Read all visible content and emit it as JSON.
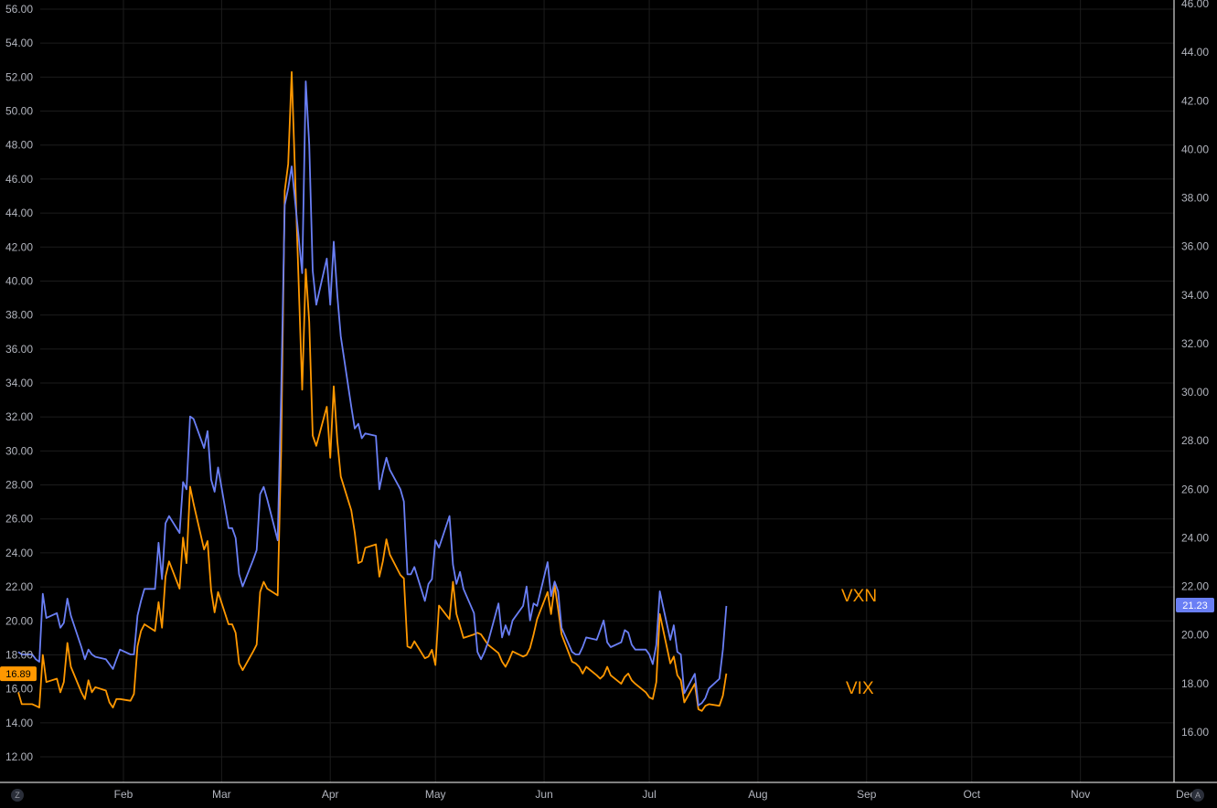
{
  "chart_data": {
    "type": "line",
    "background": "#000000",
    "grid": true,
    "colors": {
      "grid": "#1c1c1c",
      "axis_text": "#b2b5be",
      "axis_line": "#ffffff",
      "vix": "#ff9800",
      "vxn": "#6a7ff5"
    },
    "x_ticks": [
      {
        "label": "Feb",
        "day": 32
      },
      {
        "label": "Mar",
        "day": 60
      },
      {
        "label": "Apr",
        "day": 91
      },
      {
        "label": "May",
        "day": 121
      },
      {
        "label": "Jun",
        "day": 152
      },
      {
        "label": "Jul",
        "day": 182
      },
      {
        "label": "Aug",
        "day": 213
      },
      {
        "label": "Sep",
        "day": 244
      },
      {
        "label": "Oct",
        "day": 274
      },
      {
        "label": "Nov",
        "day": 305
      },
      {
        "label": "Dec",
        "day": 335
      }
    ],
    "xlim": [
      2,
      339
    ],
    "left_axis": {
      "ylim": [
        10.6,
        56.4
      ],
      "ticks": [
        "12.00",
        "14.00",
        "16.00",
        "18.00",
        "20.00",
        "22.00",
        "24.00",
        "26.00",
        "28.00",
        "30.00",
        "32.00",
        "34.00",
        "36.00",
        "38.00",
        "40.00",
        "42.00",
        "44.00",
        "46.00",
        "48.00",
        "50.00",
        "52.00",
        "54.00",
        "56.00"
      ]
    },
    "right_axis": {
      "ylim": [
        14.0,
        46.2
      ],
      "ticks": [
        "16.00",
        "18.00",
        "20.00",
        "22.00",
        "24.00",
        "26.00",
        "28.00",
        "30.00",
        "32.00",
        "34.00",
        "36.00",
        "38.00",
        "40.00",
        "42.00",
        "44.00",
        "46.00"
      ]
    },
    "series": [
      {
        "name": "VIX",
        "axis": "left",
        "color": "#ff9800",
        "last_value": "16.89",
        "points": [
          [
            2,
            15.8
          ],
          [
            3,
            15.1
          ],
          [
            6,
            15.1
          ],
          [
            7,
            15.0
          ],
          [
            8,
            14.9
          ],
          [
            9,
            18.0
          ],
          [
            10,
            16.4
          ],
          [
            13,
            16.6
          ],
          [
            14,
            15.8
          ],
          [
            15,
            16.4
          ],
          [
            16,
            18.7
          ],
          [
            17,
            17.3
          ],
          [
            20,
            15.8
          ],
          [
            21,
            15.4
          ],
          [
            22,
            16.5
          ],
          [
            23,
            15.8
          ],
          [
            24,
            16.1
          ],
          [
            27,
            15.9
          ],
          [
            28,
            15.2
          ],
          [
            29,
            14.9
          ],
          [
            30,
            15.4
          ],
          [
            31,
            15.4
          ],
          [
            34,
            15.3
          ],
          [
            35,
            15.7
          ],
          [
            36,
            18.5
          ],
          [
            37,
            19.4
          ],
          [
            38,
            19.8
          ],
          [
            41,
            19.4
          ],
          [
            42,
            21.1
          ],
          [
            43,
            19.6
          ],
          [
            44,
            22.6
          ],
          [
            45,
            23.5
          ],
          [
            48,
            21.9
          ],
          [
            49,
            24.9
          ],
          [
            50,
            23.4
          ],
          [
            51,
            27.9
          ],
          [
            52,
            26.9
          ],
          [
            55,
            24.2
          ],
          [
            56,
            24.7
          ],
          [
            57,
            21.8
          ],
          [
            58,
            20.5
          ],
          [
            59,
            21.7
          ],
          [
            62,
            19.8
          ],
          [
            63,
            19.8
          ],
          [
            64,
            19.3
          ],
          [
            65,
            17.5
          ],
          [
            66,
            17.1
          ],
          [
            69,
            18.2
          ],
          [
            70,
            18.6
          ],
          [
            71,
            21.7
          ],
          [
            72,
            22.3
          ],
          [
            73,
            21.9
          ],
          [
            76,
            21.5
          ],
          [
            77,
            30.0
          ],
          [
            78,
            45.3
          ],
          [
            79,
            46.9
          ],
          [
            80,
            52.3
          ],
          [
            83,
            33.6
          ],
          [
            84,
            40.7
          ],
          [
            85,
            37.6
          ],
          [
            86,
            30.9
          ],
          [
            87,
            30.3
          ],
          [
            90,
            32.6
          ],
          [
            91,
            29.6
          ],
          [
            92,
            33.8
          ],
          [
            93,
            30.6
          ],
          [
            94,
            28.5
          ],
          [
            97,
            26.5
          ],
          [
            98,
            25.2
          ],
          [
            99,
            23.4
          ],
          [
            100,
            23.5
          ],
          [
            101,
            24.3
          ],
          [
            104,
            24.5
          ],
          [
            105,
            22.6
          ],
          [
            106,
            23.5
          ],
          [
            107,
            24.8
          ],
          [
            108,
            23.9
          ],
          [
            111,
            22.7
          ],
          [
            112,
            22.5
          ],
          [
            113,
            18.5
          ],
          [
            114,
            18.4
          ],
          [
            115,
            18.8
          ],
          [
            118,
            17.8
          ],
          [
            119,
            17.9
          ],
          [
            120,
            18.3
          ],
          [
            121,
            17.4
          ],
          [
            122,
            20.9
          ],
          [
            125,
            20.1
          ],
          [
            126,
            22.3
          ],
          [
            127,
            20.4
          ],
          [
            128,
            19.7
          ],
          [
            129,
            19.0
          ],
          [
            132,
            19.2
          ],
          [
            133,
            19.3
          ],
          [
            134,
            19.2
          ],
          [
            135,
            18.9
          ],
          [
            136,
            18.6
          ],
          [
            139,
            18.1
          ],
          [
            140,
            17.6
          ],
          [
            141,
            17.3
          ],
          [
            142,
            17.7
          ],
          [
            143,
            18.2
          ],
          [
            146,
            17.9
          ],
          [
            147,
            18.0
          ],
          [
            148,
            18.4
          ],
          [
            149,
            19.2
          ],
          [
            150,
            20.1
          ],
          [
            153,
            21.7
          ],
          [
            154,
            20.4
          ],
          [
            155,
            22.1
          ],
          [
            156,
            20.7
          ],
          [
            157,
            19.2
          ],
          [
            160,
            17.6
          ],
          [
            161,
            17.5
          ],
          [
            162,
            17.3
          ],
          [
            163,
            16.9
          ],
          [
            164,
            17.3
          ],
          [
            167,
            16.8
          ],
          [
            168,
            16.6
          ],
          [
            169,
            16.8
          ],
          [
            170,
            17.3
          ],
          [
            171,
            16.8
          ],
          [
            174,
            16.3
          ],
          [
            175,
            16.7
          ],
          [
            176,
            16.9
          ],
          [
            177,
            16.5
          ],
          [
            178,
            16.3
          ],
          [
            181,
            15.8
          ],
          [
            182,
            15.5
          ],
          [
            183,
            15.4
          ],
          [
            184,
            16.4
          ],
          [
            185,
            20.4
          ],
          [
            188,
            17.5
          ],
          [
            189,
            17.9
          ],
          [
            190,
            16.8
          ],
          [
            191,
            16.5
          ],
          [
            192,
            15.2
          ],
          [
            195,
            16.3
          ],
          [
            196,
            14.8
          ],
          [
            197,
            14.7
          ],
          [
            198,
            15.0
          ],
          [
            199,
            15.1
          ],
          [
            202,
            15.0
          ],
          [
            203,
            15.6
          ],
          [
            204,
            16.9
          ]
        ]
      },
      {
        "name": "VXN",
        "axis": "right",
        "color": "#6a7ff5",
        "last_value": "21.23",
        "points": [
          [
            2,
            19.3
          ],
          [
            3,
            19.2
          ],
          [
            6,
            19.2
          ],
          [
            7,
            19.0
          ],
          [
            8,
            18.9
          ],
          [
            9,
            21.7
          ],
          [
            10,
            20.7
          ],
          [
            13,
            20.9
          ],
          [
            14,
            20.3
          ],
          [
            15,
            20.5
          ],
          [
            16,
            21.5
          ],
          [
            17,
            20.8
          ],
          [
            20,
            19.5
          ],
          [
            21,
            19.0
          ],
          [
            22,
            19.4
          ],
          [
            23,
            19.2
          ],
          [
            24,
            19.1
          ],
          [
            27,
            19.0
          ],
          [
            28,
            18.8
          ],
          [
            29,
            18.6
          ],
          [
            30,
            19.0
          ],
          [
            31,
            19.4
          ],
          [
            34,
            19.2
          ],
          [
            35,
            19.2
          ],
          [
            36,
            20.8
          ],
          [
            37,
            21.4
          ],
          [
            38,
            21.9
          ],
          [
            41,
            21.9
          ],
          [
            42,
            23.8
          ],
          [
            43,
            22.3
          ],
          [
            44,
            24.6
          ],
          [
            45,
            24.9
          ],
          [
            48,
            24.2
          ],
          [
            49,
            26.3
          ],
          [
            50,
            26.0
          ],
          [
            51,
            29.0
          ],
          [
            52,
            28.9
          ],
          [
            55,
            27.7
          ],
          [
            56,
            28.4
          ],
          [
            57,
            26.4
          ],
          [
            58,
            25.9
          ],
          [
            59,
            26.9
          ],
          [
            62,
            24.4
          ],
          [
            63,
            24.4
          ],
          [
            64,
            24.0
          ],
          [
            65,
            22.5
          ],
          [
            66,
            22.0
          ],
          [
            69,
            23.1
          ],
          [
            70,
            23.5
          ],
          [
            71,
            25.8
          ],
          [
            72,
            26.1
          ],
          [
            73,
            25.6
          ],
          [
            76,
            23.9
          ],
          [
            77,
            30.0
          ],
          [
            78,
            37.7
          ],
          [
            79,
            38.4
          ],
          [
            80,
            39.3
          ],
          [
            83,
            34.9
          ],
          [
            84,
            42.8
          ],
          [
            85,
            40.2
          ],
          [
            86,
            35.0
          ],
          [
            87,
            33.6
          ],
          [
            90,
            35.5
          ],
          [
            91,
            33.6
          ],
          [
            92,
            36.2
          ],
          [
            93,
            34.0
          ],
          [
            94,
            32.3
          ],
          [
            97,
            29.4
          ],
          [
            98,
            28.5
          ],
          [
            99,
            28.7
          ],
          [
            100,
            28.1
          ],
          [
            101,
            28.3
          ],
          [
            104,
            28.2
          ],
          [
            105,
            26.0
          ],
          [
            106,
            26.7
          ],
          [
            107,
            27.3
          ],
          [
            108,
            26.8
          ],
          [
            111,
            26.0
          ],
          [
            112,
            25.5
          ],
          [
            113,
            22.5
          ],
          [
            114,
            22.5
          ],
          [
            115,
            22.8
          ],
          [
            118,
            21.4
          ],
          [
            119,
            22.1
          ],
          [
            120,
            22.3
          ],
          [
            121,
            23.9
          ],
          [
            122,
            23.6
          ],
          [
            125,
            24.9
          ],
          [
            126,
            22.9
          ],
          [
            127,
            22.1
          ],
          [
            128,
            22.6
          ],
          [
            129,
            21.9
          ],
          [
            132,
            20.9
          ],
          [
            133,
            19.3
          ],
          [
            134,
            19.0
          ],
          [
            135,
            19.3
          ],
          [
            136,
            19.7
          ],
          [
            139,
            21.3
          ],
          [
            140,
            19.9
          ],
          [
            141,
            20.4
          ],
          [
            142,
            20.0
          ],
          [
            143,
            20.6
          ],
          [
            146,
            21.2
          ],
          [
            147,
            22.0
          ],
          [
            148,
            20.6
          ],
          [
            149,
            21.3
          ],
          [
            150,
            21.2
          ],
          [
            153,
            23.0
          ],
          [
            154,
            21.6
          ],
          [
            155,
            22.2
          ],
          [
            156,
            21.8
          ],
          [
            157,
            20.3
          ],
          [
            160,
            19.3
          ],
          [
            161,
            19.2
          ],
          [
            162,
            19.2
          ],
          [
            163,
            19.5
          ],
          [
            164,
            19.9
          ],
          [
            167,
            19.8
          ],
          [
            168,
            20.2
          ],
          [
            169,
            20.6
          ],
          [
            170,
            19.7
          ],
          [
            171,
            19.5
          ],
          [
            174,
            19.7
          ],
          [
            175,
            20.2
          ],
          [
            176,
            20.1
          ],
          [
            177,
            19.6
          ],
          [
            178,
            19.4
          ],
          [
            181,
            19.4
          ],
          [
            182,
            19.2
          ],
          [
            183,
            18.8
          ],
          [
            184,
            19.6
          ],
          [
            185,
            21.8
          ],
          [
            188,
            19.8
          ],
          [
            189,
            20.4
          ],
          [
            190,
            19.3
          ],
          [
            191,
            19.2
          ],
          [
            192,
            17.6
          ],
          [
            195,
            18.4
          ],
          [
            196,
            17.1
          ],
          [
            197,
            17.2
          ],
          [
            198,
            17.4
          ],
          [
            199,
            17.8
          ],
          [
            202,
            18.2
          ],
          [
            203,
            19.4
          ],
          [
            204,
            21.2
          ]
        ]
      }
    ],
    "labels": {
      "vxn_tag": "VXN",
      "vix_tag": "VIX",
      "vix_badge": "16.89",
      "vxn_badge": "21.23"
    }
  },
  "corner": {
    "left_button": "Z",
    "right_button": "A"
  }
}
